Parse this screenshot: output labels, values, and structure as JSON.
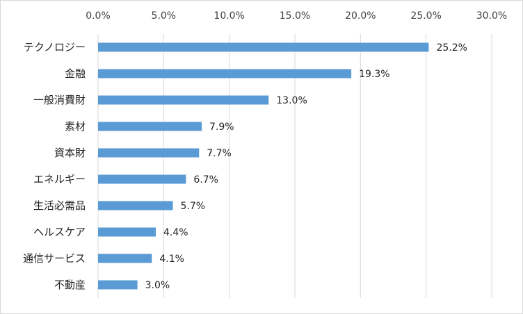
{
  "chart_data": {
    "type": "bar",
    "orientation": "horizontal",
    "categories": [
      "テクノロジー",
      "金融",
      "一般消費財",
      "素材",
      "資本財",
      "エネルギー",
      "生活必需品",
      "ヘルスケア",
      "通信サービス",
      "不動産"
    ],
    "values": [
      25.2,
      19.3,
      13.0,
      7.9,
      7.7,
      6.7,
      5.7,
      4.4,
      4.1,
      3.0
    ],
    "value_labels": [
      "25.2%",
      "19.3%",
      "13.0%",
      "7.9%",
      "7.7%",
      "6.7%",
      "5.7%",
      "4.4%",
      "4.1%",
      "3.0%"
    ],
    "xlim": [
      0,
      30
    ],
    "x_ticks": [
      0,
      5,
      10,
      15,
      20,
      25,
      30
    ],
    "x_tick_labels": [
      "0.0%",
      "5.0%",
      "10.0%",
      "15.0%",
      "20.0%",
      "25.0%",
      "30.0%"
    ],
    "x_axis_position": "top",
    "grid": true,
    "legend": "none",
    "bar_color": "#5b9bd5",
    "grid_color": "#d9d9d9",
    "title": "",
    "xlabel": "",
    "ylabel": ""
  }
}
